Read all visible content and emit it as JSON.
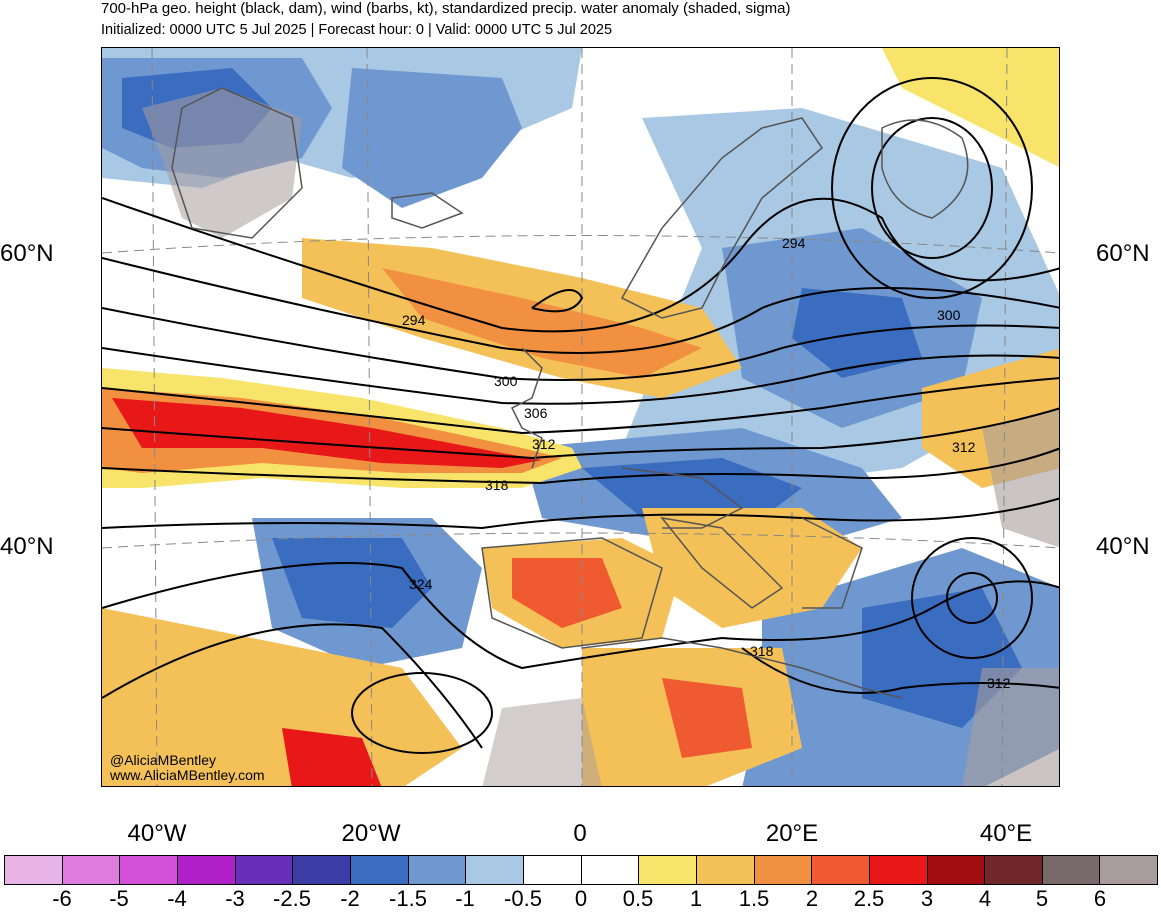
{
  "header": {
    "title": "700-hPa geo. height (black, dam), wind (barbs, kt), standardized precip. water anomaly (shaded, sigma)",
    "subtitle": "Initialized: 0000 UTC 5 Jul 2025 | Forecast hour: 0 | Valid: 0000 UTC 5 Jul 2025"
  },
  "map": {
    "lat_labels_left": [
      "60°N",
      "40°N"
    ],
    "lat_labels_right": [
      "60°N",
      "40°N"
    ],
    "lon_labels": [
      "40°W",
      "20°W",
      "0",
      "20°E",
      "40°E"
    ],
    "contour_labels": [
      "294",
      "294",
      "300",
      "300",
      "306",
      "312",
      "312",
      "318",
      "318",
      "324",
      "312"
    ],
    "credit": {
      "handle": "@AliciaMBentley",
      "website": "www.AliciaMBentley.com"
    }
  },
  "colorbar": {
    "labels": [
      "-6",
      "-5",
      "-4",
      "-3",
      "-2.5",
      "-2",
      "-1.5",
      "-1",
      "-0.5",
      "0",
      "0.5",
      "1",
      "1.5",
      "2",
      "2.5",
      "3",
      "4",
      "5",
      "6"
    ],
    "colors": [
      "#e8b4e6",
      "#e07ce0",
      "#d450d8",
      "#b020c8",
      "#6a2fb8",
      "#3c3ca6",
      "#3a6cc0",
      "#6f98d0",
      "#a8c8e4",
      "#ffffff",
      "#ffffff",
      "#f8e46a",
      "#f4c058",
      "#f09040",
      "#f05a30",
      "#e81818",
      "#a00e14",
      "#70282a",
      "#786a6a",
      "#a89c9c"
    ]
  }
}
